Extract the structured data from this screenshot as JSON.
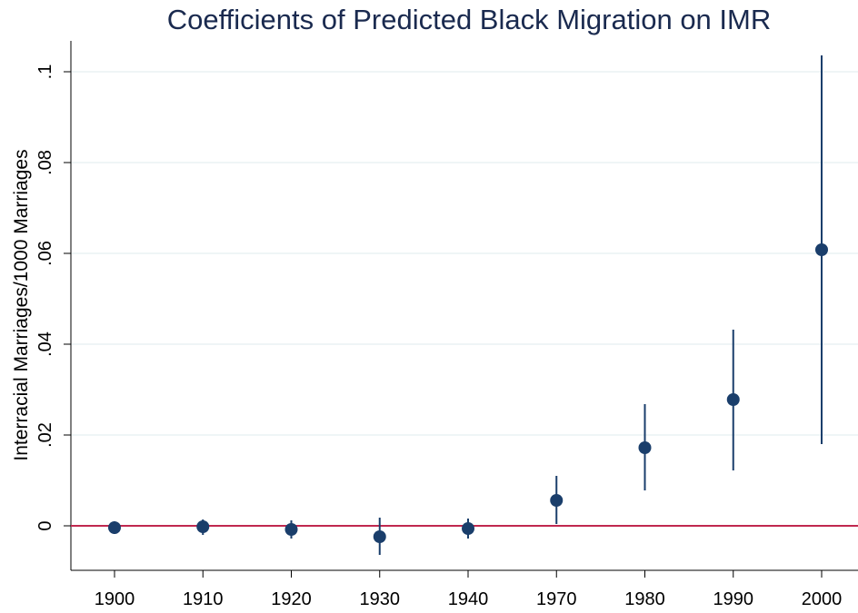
{
  "chart_data": {
    "type": "coefplot",
    "title": "Coefficients of Predicted Black Migration on IMR",
    "y_label": "Interracial Marriages/1000 Marriages",
    "categories": [
      "1900",
      "1910",
      "1920",
      "1930",
      "1940",
      "1970",
      "1980",
      "1990",
      "2000"
    ],
    "values": [
      -0.0004,
      -0.0002,
      -0.0008,
      -0.0024,
      -0.0006,
      0.0056,
      0.0172,
      0.0278,
      0.0608
    ],
    "lower": [
      -0.0018,
      -0.002,
      -0.0028,
      -0.0064,
      -0.0028,
      0.0004,
      0.0078,
      0.0122,
      0.018
    ],
    "upper": [
      0.001,
      0.0014,
      0.0012,
      0.0018,
      0.0016,
      0.011,
      0.0268,
      0.0432,
      0.1036
    ],
    "color": "#1a3e6b",
    "ylim": [
      -0.0098,
      0.1068
    ],
    "yticks": [
      0,
      {
        "value": 0.02,
        "label": ".02"
      },
      {
        "value": 0.04,
        "label": ".04"
      },
      {
        "value": 0.06,
        "label": ".06"
      },
      {
        "value": 0.08,
        "label": ".08"
      },
      {
        "value": 0.1,
        "label": ".1"
      }
    ],
    "grid": true,
    "reference_line": {
      "value": 0,
      "color": "#c0284f"
    }
  }
}
